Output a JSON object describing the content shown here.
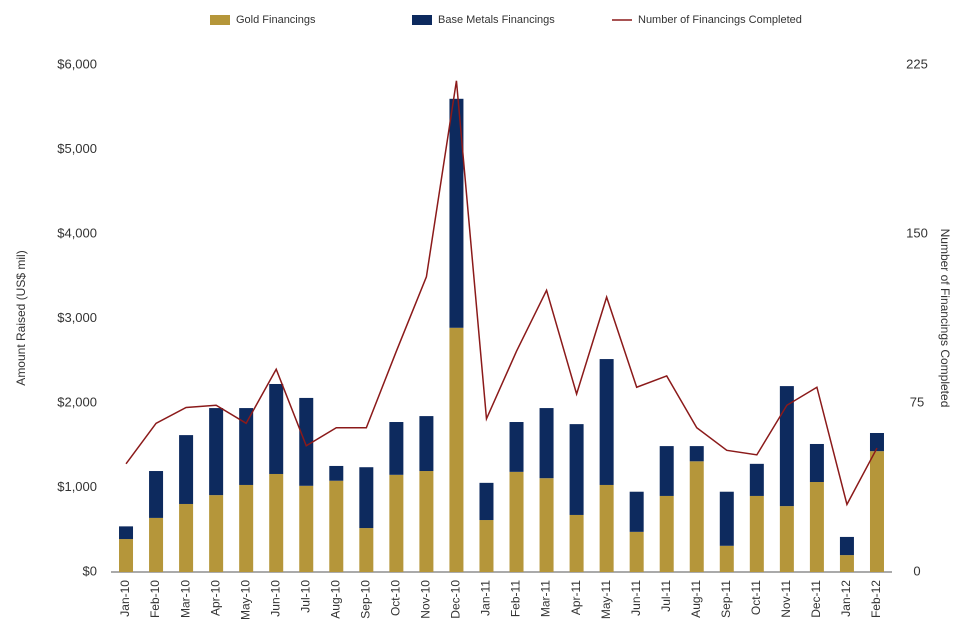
{
  "chart_data": {
    "type": "bar",
    "stacked": true,
    "categories": [
      "Jan-10",
      "Feb-10",
      "Mar-10",
      "Apr-10",
      "May-10",
      "Jun-10",
      "Jul-10",
      "Aug-10",
      "Sep-10",
      "Oct-10",
      "Nov-10",
      "Dec-10",
      "Jan-11",
      "Feb-11",
      "Mar-11",
      "Apr-11",
      "May-11",
      "Jun-11",
      "Jul-11",
      "Aug-11",
      "Sep-11",
      "Oct-11",
      "Nov-11",
      "Dec-11",
      "Jan-12",
      "Feb-12"
    ],
    "series": [
      {
        "name": "Gold Financings",
        "type": "bar",
        "color": "#b5963a",
        "values": [
          390,
          640,
          805,
          910,
          1030,
          1160,
          1020,
          1080,
          520,
          1150,
          1195,
          2890,
          615,
          1185,
          1110,
          675,
          1030,
          475,
          900,
          1310,
          310,
          900,
          780,
          1065,
          200,
          1430
        ]
      },
      {
        "name": "Base Metals Financings",
        "type": "bar",
        "color": "#0d2a5e",
        "values": [
          150,
          555,
          815,
          1030,
          910,
          1065,
          1040,
          175,
          720,
          625,
          650,
          2710,
          440,
          590,
          830,
          1075,
          1490,
          475,
          590,
          180,
          640,
          380,
          1420,
          450,
          215,
          215
        ]
      },
      {
        "name": "Number of Financings Completed",
        "type": "line",
        "axis": "y2",
        "color": "#8b1a1a",
        "values": [
          48,
          66,
          73,
          74,
          66,
          90,
          56,
          64,
          64,
          98,
          131,
          218,
          68,
          98,
          125,
          79,
          122,
          82,
          87,
          64,
          54,
          52,
          74,
          82,
          30,
          55
        ]
      }
    ],
    "ylabel": "Amount Raised (US$ mil)",
    "y2label": "Number of Financings Completed",
    "ylim": [
      0,
      6000
    ],
    "yticks": [
      {
        "value": 0,
        "label": "$0"
      },
      {
        "value": 1000,
        "label": "$1,000"
      },
      {
        "value": 2000,
        "label": "$2,000"
      },
      {
        "value": 3000,
        "label": "$3,000"
      },
      {
        "value": 4000,
        "label": "$4,000"
      },
      {
        "value": 5000,
        "label": "$5,000"
      },
      {
        "value": 6000,
        "label": "$6,000"
      }
    ],
    "y2lim": [
      0,
      225
    ],
    "y2ticks": [
      0,
      75,
      150,
      225
    ],
    "legend": "top"
  }
}
